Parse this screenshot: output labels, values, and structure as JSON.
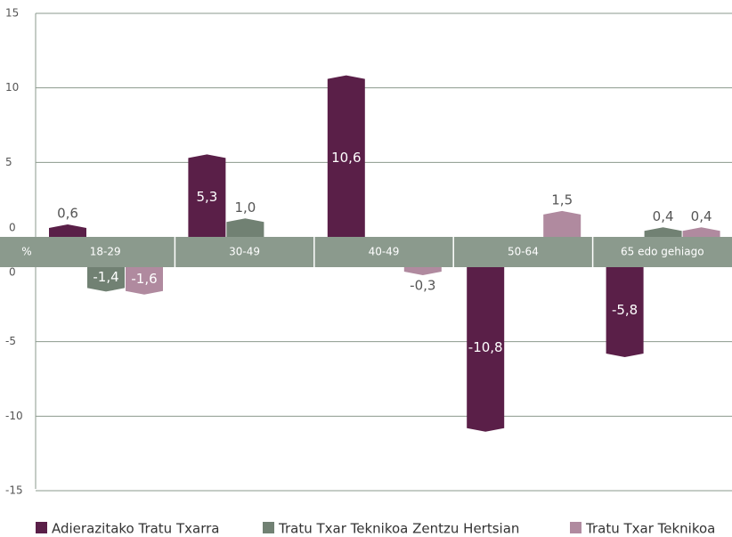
{
  "chart_data": {
    "type": "bar",
    "categories": [
      "18-29",
      "30-49",
      "40-49",
      "50-64",
      "65 edo gehiago"
    ],
    "axis_unit": "%",
    "series": [
      {
        "name": "Adierazitako Tratu Txarra",
        "color": "#5a1f48",
        "values": [
          0.6,
          5.3,
          10.6,
          -10.8,
          -5.8
        ],
        "value_labels": [
          "0,6",
          "5,3",
          "10,6",
          "-10,8",
          "-5,8"
        ]
      },
      {
        "name": "Tratu Txar Teknikoa Zentzu Hertsian",
        "color": "#718173",
        "values": [
          -1.4,
          1.0,
          null,
          null,
          0.4
        ],
        "value_labels": [
          "-1,4",
          "1,0",
          null,
          null,
          "0,4"
        ]
      },
      {
        "name": "Tratu Txar Teknikoa",
        "color": "#b08a9f",
        "values": [
          -1.6,
          null,
          -0.3,
          1.5,
          0.4
        ],
        "value_labels": [
          "-1,6",
          null,
          "-0,3",
          "1,5",
          "0,4"
        ]
      }
    ],
    "ylim": [
      -15,
      15
    ],
    "yticks": [
      -15,
      -10,
      -5,
      0,
      5,
      10,
      15
    ],
    "grid": true,
    "legend": "bottom"
  }
}
